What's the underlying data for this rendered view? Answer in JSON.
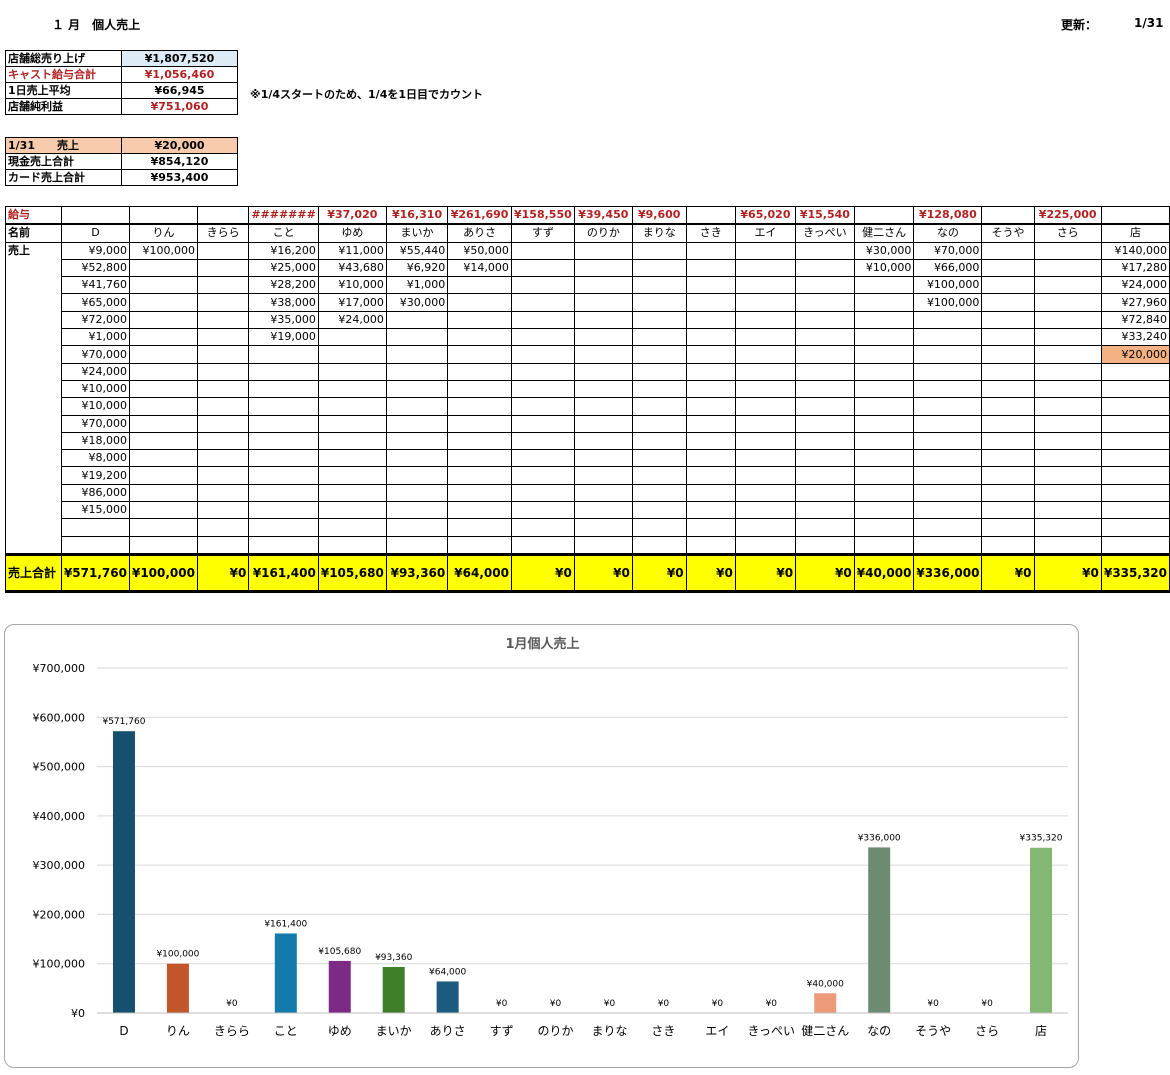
{
  "header": {
    "title": "１ 月　個人売上",
    "updated_label": "更新：",
    "updated_value": "1/31"
  },
  "summary": {
    "rows": [
      {
        "label": "店舗総売り上げ",
        "value": "¥1,807,520",
        "style": "blue"
      },
      {
        "label": "キャスト給与合計",
        "value": "¥1,056,460",
        "style": "red"
      },
      {
        "label": "1日売上平均",
        "value": "¥66,945",
        "style": ""
      },
      {
        "label": "店舗純利益",
        "value": "¥751,060",
        "style": "redval"
      }
    ],
    "note": "※1/4スタートのため、1/4を1日目でカウント"
  },
  "daily": {
    "rows": [
      {
        "label": "1/31　　売上",
        "value": "¥20,000",
        "style": "peach"
      },
      {
        "label": "現金売上合計",
        "value": "¥854,120",
        "style": ""
      },
      {
        "label": "カード売上合計",
        "value": "¥953,400",
        "style": ""
      }
    ]
  },
  "grid": {
    "salary_label": "給与",
    "name_label": "名前",
    "sales_label": "売上",
    "total_label": "売上合計",
    "names": [
      "D",
      "りん",
      "きらら",
      "こと",
      "ゆめ",
      "まいか",
      "ありさ",
      "すず",
      "のりか",
      "まりな",
      "さき",
      "エイ",
      "きっぺい",
      "健二さん",
      "なの",
      "そうや",
      "さら",
      "店"
    ],
    "salaries": [
      "",
      "",
      "",
      "#######",
      "¥37,020",
      "¥16,310",
      "¥261,690",
      "¥158,550",
      "¥39,450",
      "¥9,600",
      "",
      "¥65,020",
      "¥15,540",
      "",
      "¥128,080",
      "",
      "¥225,000",
      ""
    ],
    "sales": [
      [
        "¥9,000",
        "¥52,800",
        "¥41,760",
        "¥65,000",
        "¥72,000",
        "¥1,000",
        "¥70,000",
        "¥24,000",
        "¥10,000",
        "¥10,000",
        "¥70,000",
        "¥18,000",
        "¥8,000",
        "¥19,200",
        "¥86,000",
        "¥15,000"
      ],
      [
        "¥100,000"
      ],
      [],
      [
        "¥16,200",
        "¥25,000",
        "¥28,200",
        "¥38,000",
        "¥35,000",
        "¥19,000"
      ],
      [
        "¥11,000",
        "¥43,680",
        "¥10,000",
        "¥17,000",
        "¥24,000"
      ],
      [
        "¥55,440",
        "¥6,920",
        "¥1,000",
        "¥30,000"
      ],
      [
        "¥50,000",
        "¥14,000"
      ],
      [],
      [],
      [],
      [],
      [],
      [],
      [
        "¥30,000",
        "¥10,000"
      ],
      [
        "¥70,000",
        "¥66,000",
        "¥100,000",
        "¥100,000"
      ],
      [],
      [],
      [
        "¥140,000",
        "¥17,280",
        "¥24,000",
        "¥27,960",
        "¥72,840",
        "¥33,240",
        "¥20,000"
      ]
    ],
    "highlight_cell": {
      "col": 17,
      "row": 6,
      "color": "#f4b183"
    },
    "totals": [
      "¥571,760",
      "¥100,000",
      "¥0",
      "¥161,400",
      "¥105,680",
      "¥93,360",
      "¥64,000",
      "¥0",
      "¥0",
      "¥0",
      "¥0",
      "¥0",
      "¥0",
      "¥40,000",
      "¥336,000",
      "¥0",
      "¥0",
      "¥335,320"
    ]
  },
  "chart_data": {
    "type": "bar",
    "title": "1月個人売上",
    "categories": [
      "D",
      "りん",
      "きらら",
      "こと",
      "ゆめ",
      "まいか",
      "ありさ",
      "すず",
      "のりか",
      "まりな",
      "さき",
      "エイ",
      "きっぺい",
      "健二さん",
      "なの",
      "そうや",
      "さら",
      "店"
    ],
    "values": [
      571760,
      100000,
      0,
      161400,
      105680,
      93360,
      64000,
      0,
      0,
      0,
      0,
      0,
      0,
      40000,
      336000,
      0,
      0,
      335320
    ],
    "data_labels": [
      "¥571,760",
      "¥100,000",
      "¥0",
      "¥161,400",
      "¥105,680",
      "¥93,360",
      "¥64,000",
      "¥0",
      "¥0",
      "¥0",
      "¥0",
      "¥0",
      "¥0",
      "¥40,000",
      "¥336,000",
      "¥0",
      "¥0",
      "¥335,320"
    ],
    "colors": [
      "#17506e",
      "#c0562a",
      "#999999",
      "#137aab",
      "#7b2b85",
      "#3f7f2a",
      "#1d5a80",
      "#888888",
      "#888888",
      "#888888",
      "#888888",
      "#888888",
      "#888888",
      "#ed9a7a",
      "#6d8b70",
      "#888888",
      "#888888",
      "#82b874"
    ],
    "ylim": [
      0,
      700000
    ],
    "yticks": [
      "¥0",
      "¥100,000",
      "¥200,000",
      "¥300,000",
      "¥400,000",
      "¥500,000",
      "¥600,000",
      "¥700,000"
    ],
    "grid": true,
    "legend": "none"
  }
}
